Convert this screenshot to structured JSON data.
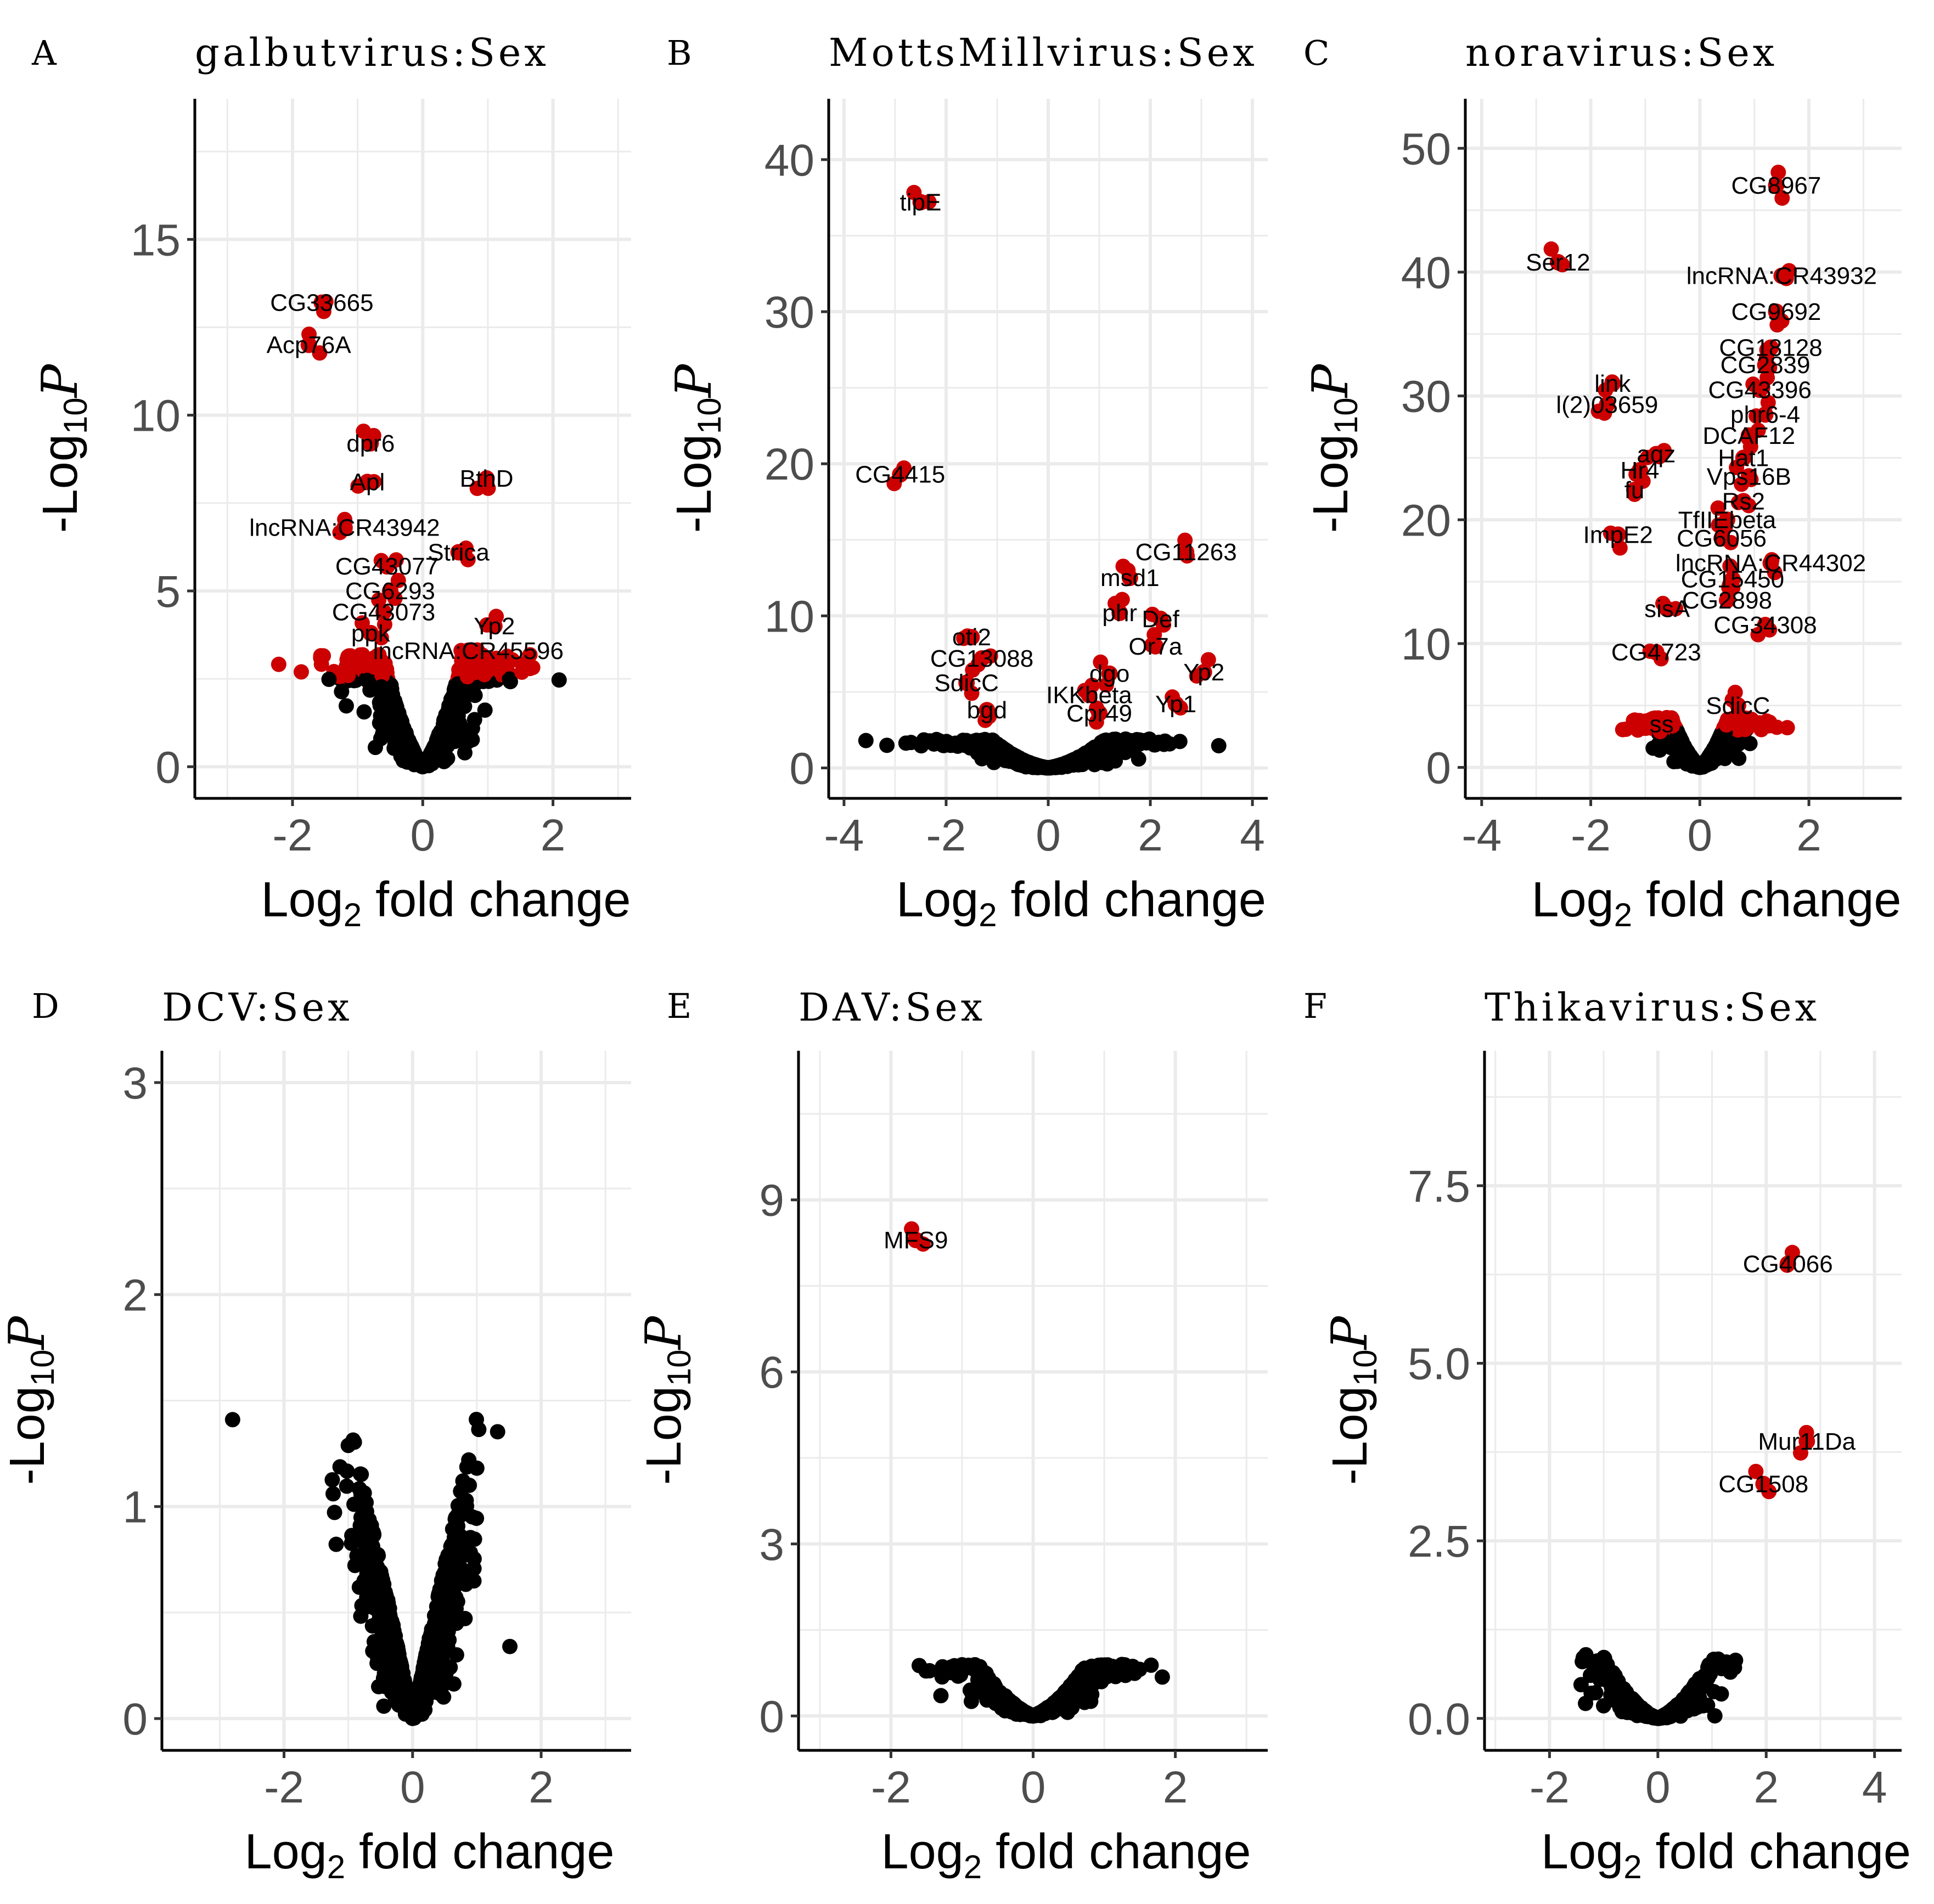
{
  "colors": {
    "significant": "#cc0000",
    "nonsignificant": "#000000",
    "grid": "#ebebeb"
  },
  "chart_data": [
    {
      "panel": "A",
      "type": "scatter",
      "title": "galbutvirus:Sex",
      "xlabel": "Log2 fold change",
      "ylabel": "-Log10 P",
      "xlim": [
        -3.5,
        3.2
      ],
      "ylim": [
        -0.9,
        19
      ],
      "xticks": [
        -2,
        0,
        2
      ],
      "yticks": [
        0,
        5,
        10,
        15
      ],
      "labeled_points": [
        {
          "label": "CG33665",
          "x": -1.55,
          "y": 13.2
        },
        {
          "label": "Acp76A",
          "x": -1.75,
          "y": 12.0
        },
        {
          "label": "dpr6",
          "x": -0.8,
          "y": 9.2
        },
        {
          "label": "Apl",
          "x": -0.85,
          "y": 8.1
        },
        {
          "label": "BthD",
          "x": 0.98,
          "y": 8.2
        },
        {
          "label": "lncRNA:CR43942",
          "x": -1.2,
          "y": 6.8
        },
        {
          "label": "Strica",
          "x": 0.55,
          "y": 6.1
        },
        {
          "label": "CG43077",
          "x": -0.55,
          "y": 5.7
        },
        {
          "label": "CG6293",
          "x": -0.5,
          "y": 5.0
        },
        {
          "label": "CG43073",
          "x": -0.6,
          "y": 4.4
        },
        {
          "label": "Yp2",
          "x": 1.1,
          "y": 4.0
        },
        {
          "label": "ppk",
          "x": -0.8,
          "y": 3.8
        },
        {
          "label": "lncRNA:CR45596",
          "x": 0.7,
          "y": 3.3
        }
      ]
    },
    {
      "panel": "B",
      "type": "scatter",
      "title": "MottsMillvirus:Sex",
      "xlabel": "Log2 fold change",
      "ylabel": "-Log10 P",
      "xlim": [
        -4.3,
        4.3
      ],
      "ylim": [
        -2,
        44
      ],
      "xticks": [
        -4,
        -2,
        0,
        2,
        4
      ],
      "yticks": [
        0,
        10,
        20,
        30,
        40
      ],
      "labeled_points": [
        {
          "label": "tipE",
          "x": -2.5,
          "y": 37.2
        },
        {
          "label": "CG4415",
          "x": -2.9,
          "y": 19.3
        },
        {
          "label": "CG11263",
          "x": 2.7,
          "y": 14.2
        },
        {
          "label": "msd1",
          "x": 1.6,
          "y": 12.5
        },
        {
          "label": "phr",
          "x": 1.4,
          "y": 10.2
        },
        {
          "label": "Def",
          "x": 2.2,
          "y": 9.8
        },
        {
          "label": "Or7a",
          "x": 2.1,
          "y": 8.0
        },
        {
          "label": "oti2",
          "x": -1.5,
          "y": 8.6
        },
        {
          "label": "CG13088",
          "x": -1.3,
          "y": 7.2
        },
        {
          "label": "SdicC",
          "x": -1.6,
          "y": 5.6
        },
        {
          "label": "dgo",
          "x": 1.2,
          "y": 6.2
        },
        {
          "label": "IKKbeta",
          "x": 0.8,
          "y": 4.8
        },
        {
          "label": "Yp2",
          "x": 3.05,
          "y": 6.3
        },
        {
          "label": "Yp1",
          "x": 2.5,
          "y": 4.2
        },
        {
          "label": "bgd",
          "x": -1.2,
          "y": 3.8
        },
        {
          "label": "Cpr49",
          "x": 1.0,
          "y": 3.6
        }
      ]
    },
    {
      "panel": "C",
      "type": "scatter",
      "title": "noravirus:Sex",
      "xlabel": "Log2 fold change",
      "ylabel": "-Log10 P",
      "xlim": [
        -4.3,
        3.7
      ],
      "ylim": [
        -2.5,
        54
      ],
      "xticks": [
        -4,
        -2,
        0,
        2
      ],
      "yticks": [
        0,
        10,
        20,
        30,
        40,
        50
      ],
      "labeled_points": [
        {
          "label": "CG8967",
          "x": 1.4,
          "y": 47.0
        },
        {
          "label": "Ser12",
          "x": -2.6,
          "y": 40.8
        },
        {
          "label": "lncRNA:CR43932",
          "x": 1.5,
          "y": 39.7
        },
        {
          "label": "CG9692",
          "x": 1.4,
          "y": 36.8
        },
        {
          "label": "CG18128",
          "x": 1.3,
          "y": 33.9
        },
        {
          "label": "CG2839",
          "x": 1.2,
          "y": 32.5
        },
        {
          "label": "CG43396",
          "x": 1.1,
          "y": 30.5
        },
        {
          "label": "link",
          "x": -1.6,
          "y": 31.0
        },
        {
          "label": "l(2)03659",
          "x": -1.7,
          "y": 29.3
        },
        {
          "label": "phr6-4",
          "x": 1.2,
          "y": 28.5
        },
        {
          "label": "DCAF12",
          "x": 0.9,
          "y": 26.8
        },
        {
          "label": "aqz",
          "x": -0.8,
          "y": 25.3
        },
        {
          "label": "Hat1",
          "x": 0.8,
          "y": 25.0
        },
        {
          "label": "Hr4",
          "x": -1.1,
          "y": 24.0
        },
        {
          "label": "Vps16B",
          "x": 0.9,
          "y": 23.5
        },
        {
          "label": "fu",
          "x": -1.2,
          "y": 22.4
        },
        {
          "label": "Rs2",
          "x": 0.8,
          "y": 21.5
        },
        {
          "label": "TfIIEbeta",
          "x": 0.5,
          "y": 20.0
        },
        {
          "label": "ImpE2",
          "x": -1.5,
          "y": 18.8
        },
        {
          "label": "CG6056",
          "x": 0.4,
          "y": 18.5
        },
        {
          "label": "lncRNA:CR44302",
          "x": 1.3,
          "y": 16.5
        },
        {
          "label": "CG15450",
          "x": 0.6,
          "y": 15.2
        },
        {
          "label": "CG2898",
          "x": 0.5,
          "y": 13.5
        },
        {
          "label": "sisA",
          "x": -0.6,
          "y": 12.8
        },
        {
          "label": "CG34308",
          "x": 1.2,
          "y": 11.5
        },
        {
          "label": "CG4723",
          "x": -0.8,
          "y": 9.3
        },
        {
          "label": "SdicC",
          "x": 0.7,
          "y": 5.0
        },
        {
          "label": "ss",
          "x": -0.7,
          "y": 3.5
        }
      ]
    },
    {
      "panel": "D",
      "type": "scatter",
      "title": "DCV:Sex",
      "xlabel": "Log2 fold change",
      "ylabel": "-Log10 P",
      "xlim": [
        -3.9,
        3.4
      ],
      "ylim": [
        -0.15,
        3.15
      ],
      "xticks": [
        -2,
        0,
        2
      ],
      "yticks": [
        0,
        1,
        2,
        3
      ],
      "labeled_points": []
    },
    {
      "panel": "E",
      "type": "scatter",
      "title": "DAV:Sex",
      "xlabel": "Log2 fold change",
      "ylabel": "-Log10 P",
      "xlim": [
        -3.3,
        3.3
      ],
      "ylim": [
        -0.6,
        11.6
      ],
      "xticks": [
        -2,
        0,
        2
      ],
      "yticks": [
        0,
        3,
        6,
        9
      ],
      "labeled_points": [
        {
          "label": "MFS9",
          "x": -1.65,
          "y": 8.3
        }
      ]
    },
    {
      "panel": "F",
      "type": "scatter",
      "title": "Thikavirus:Sex",
      "xlabel": "Log2 fold change",
      "ylabel": "-Log10 P",
      "xlim": [
        -3.2,
        4.5
      ],
      "ylim": [
        -0.45,
        9.4
      ],
      "xticks": [
        -2,
        0,
        2,
        4
      ],
      "yticks": [
        0.0,
        2.5,
        5.0,
        7.5
      ],
      "labeled_points": [
        {
          "label": "CG4066",
          "x": 2.4,
          "y": 6.4
        },
        {
          "label": "Mur11Da",
          "x": 2.75,
          "y": 3.9
        },
        {
          "label": "CG1508",
          "x": 1.95,
          "y": 3.3
        }
      ]
    }
  ]
}
